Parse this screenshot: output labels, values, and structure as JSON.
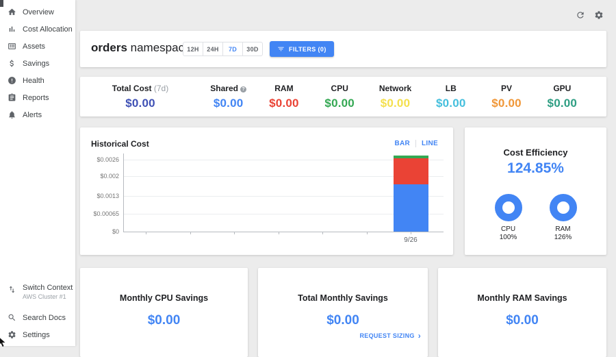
{
  "sidebar": {
    "items": [
      {
        "label": "Overview",
        "icon": "home"
      },
      {
        "label": "Cost Allocation",
        "icon": "bar-chart"
      },
      {
        "label": "Assets",
        "icon": "grid-card"
      },
      {
        "label": "Savings",
        "icon": "dollar"
      },
      {
        "label": "Health",
        "icon": "error-circle"
      },
      {
        "label": "Reports",
        "icon": "clipboard"
      },
      {
        "label": "Alerts",
        "icon": "bell"
      }
    ],
    "footer": {
      "switch_context": {
        "label": "Switch Context",
        "sublabel": "AWS Cluster #1",
        "icon": "swap-arrows"
      },
      "search_docs": {
        "label": "Search Docs",
        "icon": "search"
      },
      "settings": {
        "label": "Settings",
        "icon": "gear"
      }
    }
  },
  "topbar": {
    "icons": [
      "refresh",
      "gear"
    ]
  },
  "header": {
    "title_bold": "orders",
    "title_rest": " namespace",
    "time_ranges": [
      {
        "label": "12H",
        "selected": false
      },
      {
        "label": "24H",
        "selected": false
      },
      {
        "label": "7D",
        "selected": true
      },
      {
        "label": "30D",
        "selected": false
      }
    ],
    "filters_label": "FILTERS (0)"
  },
  "metrics": [
    {
      "label": "Total Cost",
      "suffix": " (7d)",
      "value": "$0.00",
      "color": "#3F51B5",
      "info": false
    },
    {
      "label": "Shared",
      "value": "$0.00",
      "color": "#4285F4",
      "info": true
    },
    {
      "label": "RAM",
      "value": "$0.00",
      "color": "#EA4335",
      "info": false
    },
    {
      "label": "CPU",
      "value": "$0.00",
      "color": "#34A853",
      "info": false
    },
    {
      "label": "Network",
      "value": "$0.00",
      "color": "#F4E04E",
      "info": false
    },
    {
      "label": "LB",
      "value": "$0.00",
      "color": "#45BFDD",
      "info": false
    },
    {
      "label": "PV",
      "value": "$0.00",
      "color": "#F09738",
      "info": false
    },
    {
      "label": "GPU",
      "value": "$0.00",
      "color": "#2E9E83",
      "info": false
    }
  ],
  "chart": {
    "title": "Historical Cost",
    "toggle": {
      "bar": "BAR",
      "line": "LINE",
      "active": "BAR"
    },
    "info_symbol": "?"
  },
  "chart_data": {
    "type": "bar",
    "stacked": true,
    "title": "Historical Cost",
    "x_labels": [
      "",
      "",
      "",
      "",
      "",
      "",
      "9/26"
    ],
    "y_ticks": [
      {
        "v": 0,
        "label": "$0"
      },
      {
        "v": 0.00065,
        "label": "$0.00065"
      },
      {
        "v": 0.0013,
        "label": "$0.0013"
      },
      {
        "v": 0.002,
        "label": "$0.002"
      },
      {
        "v": 0.0026,
        "label": "$0.0026"
      }
    ],
    "ymax": 0.0026,
    "grid": true,
    "legend": "none",
    "series": [
      {
        "name": "blue",
        "color": "#4285F4",
        "values": [
          0,
          0,
          0,
          0,
          0,
          0,
          0.00172
        ]
      },
      {
        "name": "red",
        "color": "#EA4335",
        "values": [
          0,
          0,
          0,
          0,
          0,
          0,
          0.00092
        ]
      },
      {
        "name": "green",
        "color": "#34A853",
        "values": [
          0,
          0,
          0,
          0,
          0,
          0,
          0.00012
        ]
      }
    ]
  },
  "efficiency": {
    "title": "Cost Efficiency",
    "value": "124.85%",
    "accent": "#4285F4",
    "donuts": [
      {
        "label": "CPU",
        "percent": "100%"
      },
      {
        "label": "RAM",
        "percent": "126%"
      }
    ]
  },
  "savings_cards": [
    {
      "title": "Monthly CPU Savings",
      "value": "$0.00"
    },
    {
      "title": "Total Monthly Savings",
      "value": "$0.00",
      "link": "REQUEST SIZING",
      "link_chevron": "›"
    },
    {
      "title": "Monthly RAM Savings",
      "value": "$0.00"
    }
  ]
}
